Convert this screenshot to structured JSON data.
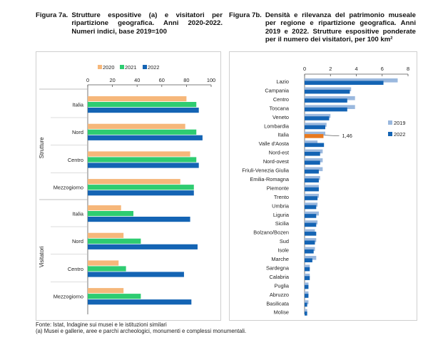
{
  "header_a": {
    "label": "Figura 7a.",
    "text": "Strutture espositive (a) e visitatori per ripartizione geografica. Anni 2020-2022. Numeri indici, base 2019=100"
  },
  "header_b": {
    "label": "Figura 7b.",
    "text": "Densità e rilevanza del patrimonio museale per regione e ripartizione geografica. Anni 2019 e 2022. Strutture espositive ponderate per il numero dei visitatori, per 100 km²"
  },
  "footer": {
    "source": "Fonte: Istat, Indagine sui musei e le istituzioni similari",
    "note": "(a) Musei e gallerie, aree e parchi archeologici, monumenti e complessi monumentali."
  },
  "colors": {
    "y2020": "#f6b77a",
    "y2021": "#2ecc71",
    "y2022": "#1464b4",
    "y2019": "#9ab8de",
    "highlight": "#e8791e"
  },
  "chart_data": [
    {
      "type": "bar",
      "orientation": "horizontal",
      "xlim": [
        0,
        100
      ],
      "xticks": [
        "0",
        "20",
        "40",
        "60",
        "80",
        "100"
      ],
      "legend": [
        "2020",
        "2021",
        "2022"
      ],
      "legend_position": "top",
      "groups": [
        {
          "name": "Strutture",
          "categories": [
            "Italia",
            "Nord",
            "Centro",
            "Mezzogiorno"
          ],
          "series": [
            {
              "name": "2020",
              "values": [
                80,
                79,
                83,
                75
              ]
            },
            {
              "name": "2021",
              "values": [
                88,
                88,
                88,
                86
              ]
            },
            {
              "name": "2022",
              "values": [
                90,
                93,
                90,
                86
              ]
            }
          ]
        },
        {
          "name": "Visitatori",
          "categories": [
            "Italia",
            "Nord",
            "Centro",
            "Mezzogiorno"
          ],
          "series": [
            {
              "name": "2020",
              "values": [
                27,
                29,
                25,
                29
              ]
            },
            {
              "name": "2021",
              "values": [
                37,
                43,
                31,
                43
              ]
            },
            {
              "name": "2022",
              "values": [
                83,
                89,
                78,
                84
              ]
            }
          ]
        }
      ]
    },
    {
      "type": "bar",
      "orientation": "horizontal",
      "xlim": [
        0,
        8
      ],
      "xticks": [
        "0",
        "2",
        "4",
        "6",
        "8"
      ],
      "legend": [
        "2019",
        "2022"
      ],
      "legend_position": "right",
      "categories": [
        "Lazio",
        "Campania",
        "Centro",
        "Toscana",
        "Veneto",
        "Lombardia",
        "Italia",
        "Valle d'Aosta",
        "Nord-est",
        "Nord-ovest",
        "Friuli-Venezia Giulia",
        "Emilia-Romagna",
        "Piemonte",
        "Trento",
        "Umbria",
        "Liguria",
        "Sicilia",
        "Bolzano/Bozen",
        "Sud",
        "Isole",
        "Marche",
        "Sardegna",
        "Calabria",
        "Puglia",
        "Abruzzo",
        "Basilicata",
        "Molise"
      ],
      "series": [
        {
          "name": "2019",
          "values": [
            7.2,
            3.6,
            3.9,
            3.9,
            2.0,
            1.7,
            1.6,
            1.0,
            1.4,
            1.4,
            1.4,
            1.2,
            1.1,
            1.1,
            1.0,
            1.1,
            1.0,
            0.8,
            0.9,
            0.8,
            0.9,
            0.4,
            0.4,
            0.3,
            0.3,
            0.3,
            0.2
          ]
        },
        {
          "name": "2022",
          "values": [
            6.1,
            3.5,
            3.3,
            3.3,
            1.9,
            1.6,
            1.46,
            1.5,
            1.2,
            1.2,
            1.1,
            1.1,
            1.1,
            1.0,
            0.9,
            0.9,
            0.9,
            0.9,
            0.8,
            0.7,
            0.6,
            0.4,
            0.4,
            0.3,
            0.3,
            0.2,
            0.2
          ]
        }
      ],
      "annotation": "1,46",
      "highlight_category": "Italia"
    }
  ]
}
